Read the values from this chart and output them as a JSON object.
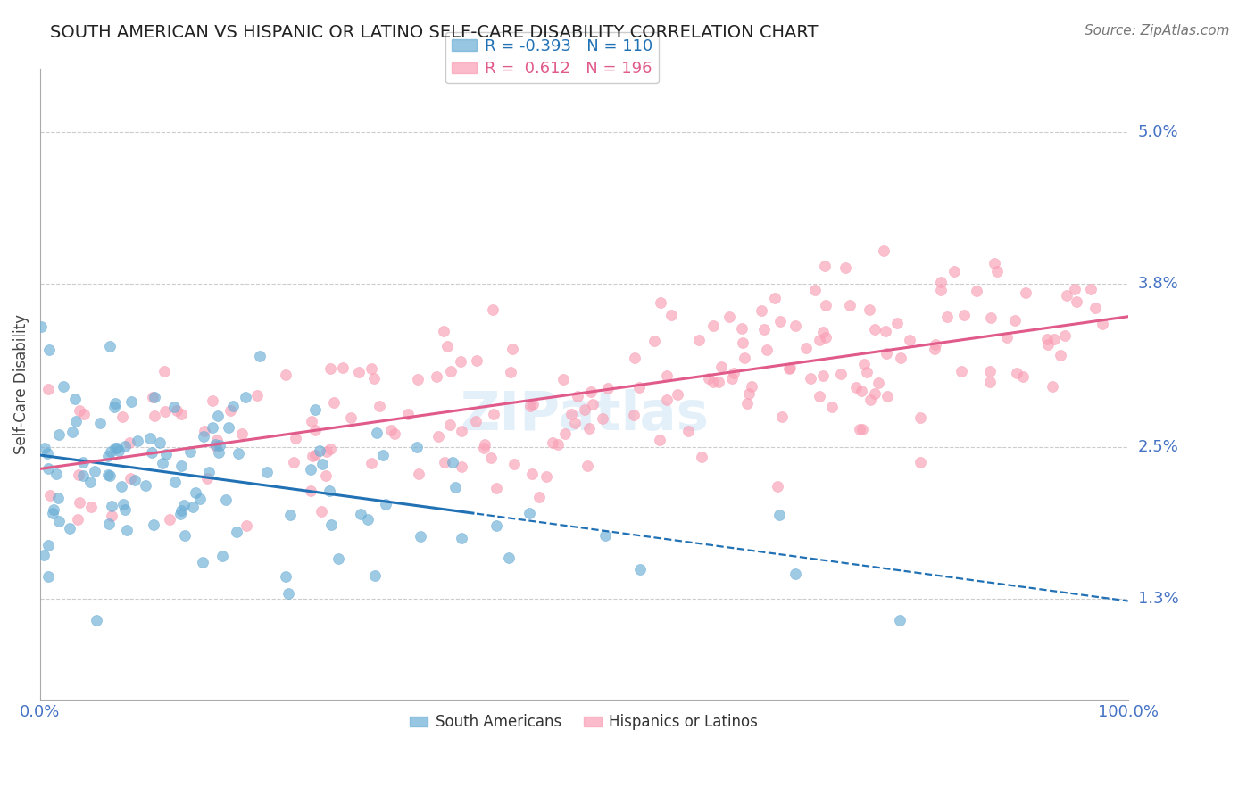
{
  "title": "SOUTH AMERICAN VS HISPANIC OR LATINO SELF-CARE DISABILITY CORRELATION CHART",
  "source": "Source: ZipAtlas.com",
  "ylabel": "Self-Care Disability",
  "ytick_labels": [
    "1.3%",
    "2.5%",
    "3.8%",
    "5.0%"
  ],
  "ytick_values": [
    1.3,
    2.5,
    3.8,
    5.0
  ],
  "blue_R": -0.393,
  "blue_N": 110,
  "pink_R": 0.612,
  "pink_N": 196,
  "blue_color": "#6baed6",
  "pink_color": "#fa9fb5",
  "blue_line_color": "#2171b5",
  "pink_line_color": "#e05a8a",
  "legend_label_blue": "South Americans",
  "legend_label_pink": "Hispanics or Latinos",
  "watermark": "ZIPatlas",
  "title_color": "#222222",
  "axis_label_color": "#4472c4",
  "background_color": "#ffffff",
  "grid_color": "#cccccc",
  "xmin": 0.0,
  "xmax": 100.0,
  "ymin": 0.5,
  "ymax": 5.5
}
